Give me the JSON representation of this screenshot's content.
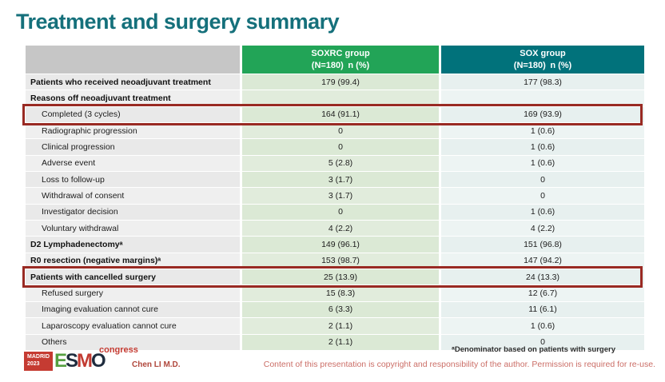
{
  "slide": {
    "title": "Treatment and surgery summary",
    "presenter": "Chen LI M.D.",
    "footnote": "ᵃDenominator based on patients with surgery",
    "copyright": "Content of this presentation is copyright and responsibility of the author. Permission is required for re-use."
  },
  "logo": {
    "city": "MADRID",
    "year": "2023",
    "letters": [
      "E",
      "S",
      "M",
      "O"
    ],
    "congress": "congress"
  },
  "colors": {
    "title_teal": "#15707b",
    "header_soxrc_green": "#22a457",
    "header_sox_teal": "#01727b",
    "highlight_red": "#992a23",
    "accent_red": "#c53b32"
  },
  "table": {
    "header": {
      "soxrc_title": "SOXRC group",
      "soxrc_sub": "(N=180) n (%)",
      "sox_title": "SOX group",
      "sox_sub": "(N=180) n (%)"
    },
    "rows": [
      {
        "label": "Patients who received neoadjuvant treatment",
        "bold": true,
        "indent": false,
        "highlight": false,
        "soxrc": "179 (99.4)",
        "sox": "177 (98.3)"
      },
      {
        "label": "Reasons off neoadjuvant treatment",
        "bold": true,
        "indent": false,
        "highlight": false,
        "soxrc": "",
        "sox": ""
      },
      {
        "label": "Completed (3 cycles)",
        "bold": false,
        "indent": true,
        "highlight": true,
        "soxrc": "164 (91.1)",
        "sox": "169 (93.9)"
      },
      {
        "label": "Radiographic progression",
        "bold": false,
        "indent": true,
        "highlight": false,
        "soxrc": "0",
        "sox": "1 (0.6)"
      },
      {
        "label": "Clinical progression",
        "bold": false,
        "indent": true,
        "highlight": false,
        "soxrc": "0",
        "sox": "1 (0.6)"
      },
      {
        "label": "Adverse event",
        "bold": false,
        "indent": true,
        "highlight": false,
        "soxrc": "5 (2.8)",
        "sox": "1 (0.6)"
      },
      {
        "label": "Loss to follow-up",
        "bold": false,
        "indent": true,
        "highlight": false,
        "soxrc": "3 (1.7)",
        "sox": "0"
      },
      {
        "label": "Withdrawal of consent",
        "bold": false,
        "indent": true,
        "highlight": false,
        "soxrc": "3 (1.7)",
        "sox": "0"
      },
      {
        "label": "Investigator decision",
        "bold": false,
        "indent": true,
        "highlight": false,
        "soxrc": "0",
        "sox": "1 (0.6)"
      },
      {
        "label": "Voluntary withdrawal",
        "bold": false,
        "indent": true,
        "highlight": false,
        "soxrc": "4 (2.2)",
        "sox": "4 (2.2)"
      },
      {
        "label": "D2 Lymphadenectomyᵃ",
        "bold": true,
        "indent": false,
        "highlight": false,
        "soxrc": "149 (96.1)",
        "sox": "151 (96.8)"
      },
      {
        "label": "R0 resection (negative margins)ᵃ",
        "bold": true,
        "indent": false,
        "highlight": false,
        "soxrc": "153 (98.7)",
        "sox": "147 (94.2)"
      },
      {
        "label": "Patients with cancelled surgery",
        "bold": true,
        "indent": false,
        "highlight": true,
        "soxrc": "25 (13.9)",
        "sox": "24 (13.3)"
      },
      {
        "label": "Refused surgery",
        "bold": false,
        "indent": true,
        "highlight": false,
        "soxrc": "15 (8.3)",
        "sox": "12 (6.7)"
      },
      {
        "label": "Imaging evaluation cannot cure",
        "bold": false,
        "indent": true,
        "highlight": false,
        "soxrc": "6 (3.3)",
        "sox": "11 (6.1)"
      },
      {
        "label": "Laparoscopy evaluation cannot cure",
        "bold": false,
        "indent": true,
        "highlight": false,
        "soxrc": "2 (1.1)",
        "sox": "1 (0.6)"
      },
      {
        "label": "Others",
        "bold": false,
        "indent": true,
        "highlight": false,
        "soxrc": "2 (1.1)",
        "sox": "0"
      }
    ]
  }
}
